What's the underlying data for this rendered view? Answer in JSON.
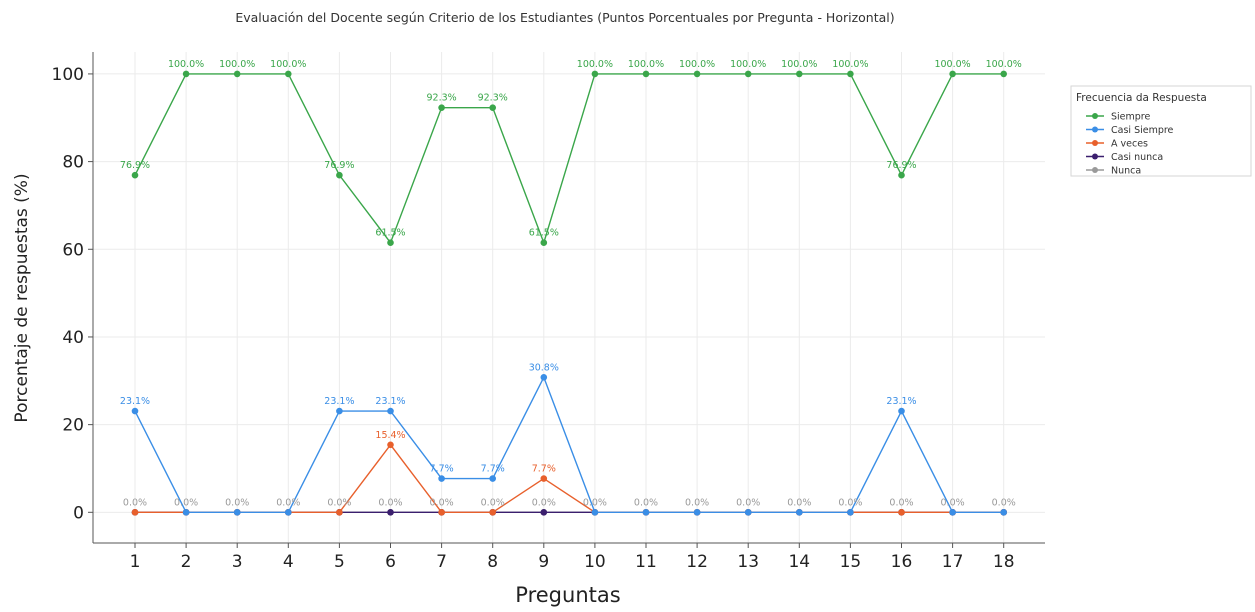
{
  "chart_data": {
    "type": "line",
    "title": "",
    "subtitle": "Evaluación del Docente según Criterio de los Estudiantes (Puntos Porcentuales por Pregunta - Horizontal)",
    "xlabel": "Preguntas",
    "ylabel": "Porcentaje de respuestas (%)",
    "ylim": [
      -7,
      105
    ],
    "yticks": [
      "0",
      "20",
      "40",
      "60",
      "80",
      "100"
    ],
    "categories": [
      "1",
      "2",
      "3",
      "4",
      "5",
      "6",
      "7",
      "8",
      "9",
      "10",
      "11",
      "12",
      "13",
      "14",
      "15",
      "16",
      "17",
      "18"
    ],
    "grid": true,
    "legend": {
      "title": "Frecuencia da Respuesta",
      "placement": "right-outside-top"
    },
    "series": [
      {
        "name": "Siempre",
        "color": "#3aa64a",
        "values": [
          76.9,
          100,
          100,
          100,
          76.9,
          61.5,
          92.3,
          92.3,
          61.5,
          100,
          100,
          100,
          100,
          100,
          100,
          76.9,
          100,
          100
        ],
        "labels": [
          "76.9%",
          "100.0%",
          "100.0%",
          "100.0%",
          "76.9%",
          "61.5%",
          "92.3%",
          "92.3%",
          "61.5%",
          "100.0%",
          "100.0%",
          "100.0%",
          "100.0%",
          "100.0%",
          "100.0%",
          "76.9%",
          "100.0%",
          "100.0%"
        ]
      },
      {
        "name": "Casi Siempre",
        "color": "#3a8ee6",
        "values": [
          23.1,
          0,
          0,
          0,
          23.1,
          23.1,
          7.7,
          7.7,
          30.8,
          0,
          0,
          0,
          0,
          0,
          0,
          23.1,
          0,
          0
        ],
        "labels": [
          "23.1%",
          "0.0%",
          "0.0%",
          "0.0%",
          "23.1%",
          "23.1%",
          "7.7%",
          "7.7%",
          "30.8%",
          "0.0%",
          "0.0%",
          "0.0%",
          "0.0%",
          "0.0%",
          "0.0%",
          "23.1%",
          "0.0%",
          "0.0%"
        ]
      },
      {
        "name": "A veces",
        "color": "#e8602c",
        "values": [
          0,
          0,
          0,
          0,
          0,
          15.4,
          0,
          0,
          7.7,
          0,
          0,
          0,
          0,
          0,
          0,
          0,
          0,
          0
        ],
        "labels": [
          "0.0%",
          "0.0%",
          "0.0%",
          "0.0%",
          "0.0%",
          "15.4%",
          "0.0%",
          "0.0%",
          "7.7%",
          "0.0%",
          "0.0%",
          "0.0%",
          "0.0%",
          "0.0%",
          "0.0%",
          "0.0%",
          "0.0%",
          "0.0%"
        ]
      },
      {
        "name": "Casi nunca",
        "color": "#3b1f6e",
        "values": [
          0,
          0,
          0,
          0,
          0,
          0,
          0,
          0,
          0,
          0,
          0,
          0,
          0,
          0,
          0,
          0,
          0,
          0
        ],
        "labels": [
          "0.0%",
          "0.0%",
          "0.0%",
          "0.0%",
          "0.0%",
          "0.0%",
          "0.0%",
          "0.0%",
          "0.0%",
          "0.0%",
          "0.0%",
          "0.0%",
          "0.0%",
          "0.0%",
          "0.0%",
          "0.0%",
          "0.0%",
          "0.0%"
        ]
      },
      {
        "name": "Nunca",
        "color": "#9a9a9a",
        "values": [
          0,
          0,
          0,
          0,
          0,
          0,
          0,
          0,
          0,
          0,
          0,
          0,
          0,
          0,
          0,
          0,
          0,
          0
        ],
        "labels": [
          "0.0%",
          "0.0%",
          "0.0%",
          "0.0%",
          "0.0%",
          "0.0%",
          "0.0%",
          "0.0%",
          "0.0%",
          "0.0%",
          "0.0%",
          "0.0%",
          "0.0%",
          "0.0%",
          "0.0%",
          "0.0%",
          "0.0%",
          "0.0%"
        ]
      }
    ]
  }
}
